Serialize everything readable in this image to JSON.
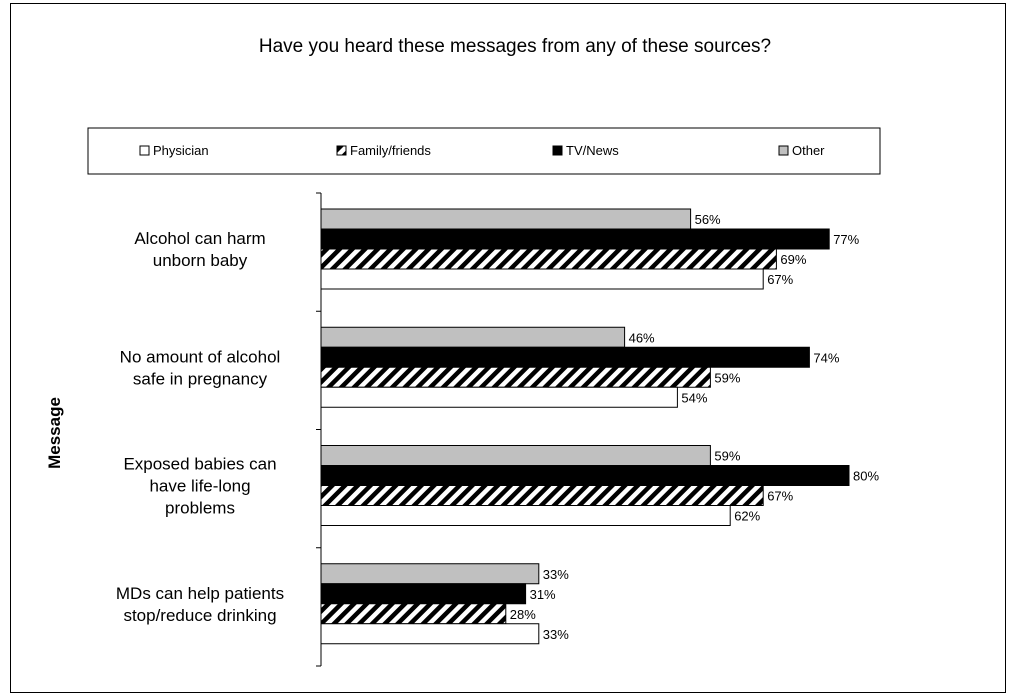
{
  "chart_data": {
    "type": "bar",
    "orientation": "horizontal",
    "title": "Have you heard these messages from any of these sources?",
    "ylabel": "Message",
    "xlabel": "",
    "xlim": [
      0,
      100
    ],
    "legend_position": "top",
    "grid": false,
    "categories": [
      [
        "Alcohol can harm",
        "unborn baby"
      ],
      [
        "No amount of alcohol",
        "safe in pregnancy"
      ],
      [
        "Exposed babies can",
        "have life-long",
        "problems"
      ],
      [
        "MDs can help patients",
        "stop/reduce drinking"
      ]
    ],
    "series": [
      {
        "name": "Physician",
        "fill": "white",
        "values": [
          67,
          54,
          62,
          33
        ]
      },
      {
        "name": "Family/friends",
        "fill": "hatched",
        "values": [
          69,
          59,
          67,
          28
        ]
      },
      {
        "name": "TV/News",
        "fill": "black",
        "values": [
          77,
          74,
          80,
          31
        ]
      },
      {
        "name": "Other",
        "fill": "gray",
        "values": [
          56,
          46,
          59,
          33
        ]
      }
    ],
    "value_suffix": "%"
  },
  "colors": {
    "physician": "#ffffff",
    "tv_news": "#000000",
    "other": "#c0c0c0",
    "outline": "#000000"
  }
}
